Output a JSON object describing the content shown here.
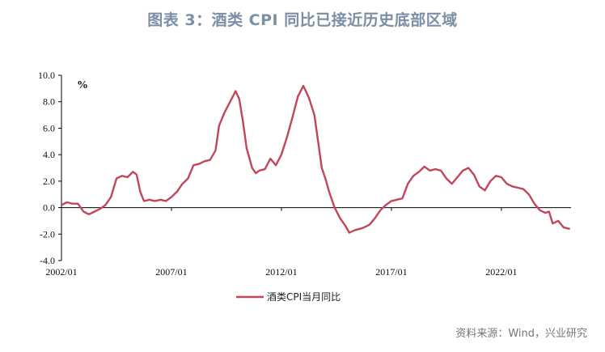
{
  "figure": {
    "title": "图表 3：酒类 CPI 同比已接近历史底部区域",
    "source": "资料来源：Wind，兴业研究"
  },
  "colors": {
    "series": "#c0475a",
    "axis": "#000000"
  },
  "chart_data": {
    "type": "line",
    "title": "图表 3：酒类 CPI 同比已接近历史底部区域",
    "ylabel": "%",
    "xlabel": "",
    "ylim": [
      -4.0,
      10.0
    ],
    "yticks": [
      "10.0",
      "8.0",
      "6.0",
      "4.0",
      "2.0",
      "0.0",
      "-2.0",
      "-4.0"
    ],
    "ytick_values": [
      10,
      8,
      6,
      4,
      2,
      0,
      -2,
      -4
    ],
    "xticks": [
      "2002/01",
      "2007/01",
      "2012/01",
      "2017/01",
      "2022/01"
    ],
    "xtick_dates": [
      "2002/01",
      "2007/01",
      "2012/01",
      "2017/01",
      "2022/01"
    ],
    "xlim": [
      "2002/01",
      "2025/03"
    ],
    "grid": false,
    "legend_position": "bottom",
    "series": [
      {
        "name": "酒类CPI当月同比",
        "points": [
          [
            "2002/01",
            0.2
          ],
          [
            "2002/04",
            0.4
          ],
          [
            "2002/07",
            0.3
          ],
          [
            "2002/10",
            0.3
          ],
          [
            "2003/01",
            -0.3
          ],
          [
            "2003/04",
            -0.5
          ],
          [
            "2003/07",
            -0.3
          ],
          [
            "2003/10",
            -0.1
          ],
          [
            "2004/01",
            0.2
          ],
          [
            "2004/04",
            0.8
          ],
          [
            "2004/07",
            2.2
          ],
          [
            "2004/10",
            2.4
          ],
          [
            "2005/01",
            2.3
          ],
          [
            "2005/04",
            2.7
          ],
          [
            "2005/06",
            2.5
          ],
          [
            "2005/08",
            1.2
          ],
          [
            "2005/10",
            0.5
          ],
          [
            "2006/01",
            0.6
          ],
          [
            "2006/04",
            0.5
          ],
          [
            "2006/07",
            0.6
          ],
          [
            "2006/10",
            0.5
          ],
          [
            "2007/01",
            0.8
          ],
          [
            "2007/04",
            1.2
          ],
          [
            "2007/07",
            1.8
          ],
          [
            "2007/10",
            2.2
          ],
          [
            "2008/01",
            3.2
          ],
          [
            "2008/04",
            3.3
          ],
          [
            "2008/07",
            3.5
          ],
          [
            "2008/10",
            3.6
          ],
          [
            "2009/01",
            4.3
          ],
          [
            "2009/03",
            6.2
          ],
          [
            "2009/06",
            7.2
          ],
          [
            "2009/09",
            8.0
          ],
          [
            "2009/12",
            8.8
          ],
          [
            "2010/02",
            8.2
          ],
          [
            "2010/04",
            6.5
          ],
          [
            "2010/06",
            4.5
          ],
          [
            "2010/09",
            3.0
          ],
          [
            "2010/11",
            2.6
          ],
          [
            "2011/01",
            2.8
          ],
          [
            "2011/04",
            2.9
          ],
          [
            "2011/07",
            3.7
          ],
          [
            "2011/10",
            3.2
          ],
          [
            "2012/01",
            4.0
          ],
          [
            "2012/04",
            5.3
          ],
          [
            "2012/07",
            6.8
          ],
          [
            "2012/10",
            8.4
          ],
          [
            "2013/01",
            9.2
          ],
          [
            "2013/04",
            8.3
          ],
          [
            "2013/07",
            7.0
          ],
          [
            "2013/09",
            5.0
          ],
          [
            "2013/11",
            3.0
          ],
          [
            "2014/01",
            2.2
          ],
          [
            "2014/03",
            1.2
          ],
          [
            "2014/06",
            0.0
          ],
          [
            "2014/09",
            -0.8
          ],
          [
            "2014/12",
            -1.4
          ],
          [
            "2015/02",
            -1.9
          ],
          [
            "2015/05",
            -1.7
          ],
          [
            "2015/08",
            -1.6
          ],
          [
            "2015/10",
            -1.5
          ],
          [
            "2016/01",
            -1.3
          ],
          [
            "2016/04",
            -0.8
          ],
          [
            "2016/07",
            -0.2
          ],
          [
            "2016/10",
            0.2
          ],
          [
            "2017/01",
            0.5
          ],
          [
            "2017/04",
            0.6
          ],
          [
            "2017/07",
            0.7
          ],
          [
            "2017/10",
            1.8
          ],
          [
            "2018/01",
            2.4
          ],
          [
            "2018/04",
            2.7
          ],
          [
            "2018/07",
            3.1
          ],
          [
            "2018/10",
            2.8
          ],
          [
            "2019/01",
            2.9
          ],
          [
            "2019/04",
            2.8
          ],
          [
            "2019/07",
            2.2
          ],
          [
            "2019/10",
            1.8
          ],
          [
            "2020/01",
            2.3
          ],
          [
            "2020/04",
            2.8
          ],
          [
            "2020/07",
            3.0
          ],
          [
            "2020/10",
            2.5
          ],
          [
            "2021/01",
            1.6
          ],
          [
            "2021/04",
            1.3
          ],
          [
            "2021/07",
            2.0
          ],
          [
            "2021/10",
            2.4
          ],
          [
            "2022/01",
            2.3
          ],
          [
            "2022/04",
            1.8
          ],
          [
            "2022/07",
            1.6
          ],
          [
            "2022/10",
            1.5
          ],
          [
            "2023/01",
            1.4
          ],
          [
            "2023/04",
            1.0
          ],
          [
            "2023/07",
            0.3
          ],
          [
            "2023/10",
            -0.2
          ],
          [
            "2024/01",
            -0.4
          ],
          [
            "2024/03",
            -0.3
          ],
          [
            "2024/05",
            -1.2
          ],
          [
            "2024/08",
            -1.0
          ],
          [
            "2024/11",
            -1.5
          ],
          [
            "2025/02",
            -1.6
          ]
        ]
      }
    ]
  }
}
